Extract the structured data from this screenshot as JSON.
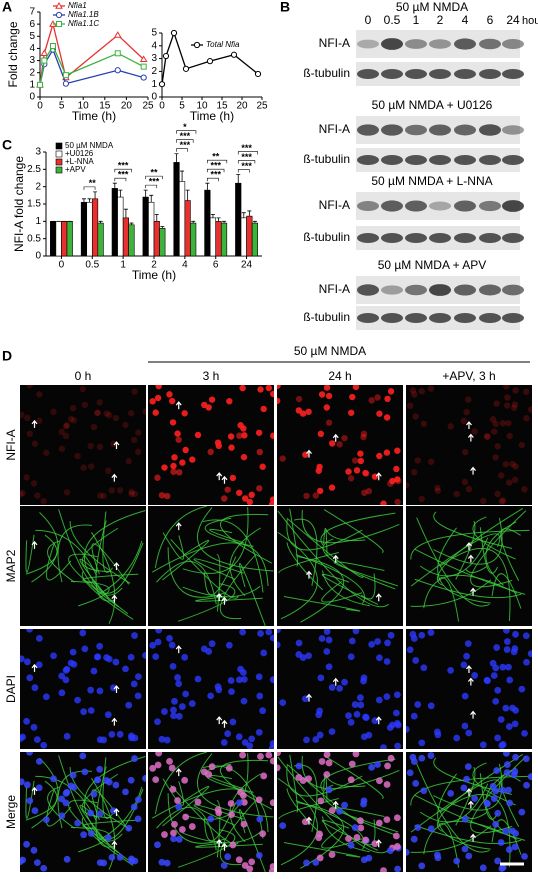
{
  "panel_labels": [
    "A",
    "B",
    "C",
    "D"
  ],
  "chart_data": [
    {
      "type": "line",
      "x_label": "Time (h)",
      "y_label": "Fold change",
      "x": [
        0,
        1,
        3,
        6,
        18,
        24
      ],
      "series": [
        {
          "name": "Nfia1",
          "color": "#e8312f",
          "marker": "triangle",
          "values": [
            1,
            3.6,
            6,
            1.6,
            5.1,
            3.1
          ]
        },
        {
          "name": "Nfia1.1B",
          "color": "#2a3eb1",
          "marker": "circle",
          "values": [
            1,
            2.7,
            3.9,
            1.1,
            2.2,
            1.6
          ]
        },
        {
          "name": "Nfia1.1C",
          "color": "#3cb43c",
          "marker": "square",
          "values": [
            1,
            3,
            4.2,
            1.8,
            3.6,
            2.5
          ]
        }
      ],
      "xlim": [
        0,
        25
      ],
      "xticks": [
        0,
        5,
        10,
        15,
        20,
        25
      ],
      "ylim": [
        0,
        7
      ],
      "yticks": [
        0,
        1,
        2,
        3,
        4,
        5,
        6,
        7
      ]
    },
    {
      "type": "line",
      "x_label": "Time (h)",
      "x": [
        0,
        1,
        3,
        6,
        12,
        18,
        24
      ],
      "series": [
        {
          "name": "Total Nfia",
          "color": "#000000",
          "marker": "circle",
          "values": [
            1,
            3.2,
            5,
            2.2,
            2.8,
            3.3,
            1.8
          ]
        }
      ],
      "xlim": [
        0,
        25
      ],
      "xticks": [
        0,
        5,
        10,
        15,
        20,
        25
      ],
      "ylim": [
        0,
        5
      ],
      "yticks": [
        0,
        1,
        2,
        3,
        4,
        5
      ]
    },
    {
      "type": "bar",
      "x_label": "Time (h)",
      "y_label": "NFI-A fold change",
      "categories": [
        "0",
        "0.5",
        "1",
        "2",
        "4",
        "6",
        "24"
      ],
      "series": [
        {
          "name": "50 µM NMDA",
          "color": "#000000",
          "values": [
            1,
            1.55,
            1.95,
            1.7,
            2.7,
            1.9,
            2.1
          ],
          "errors": [
            0,
            0.1,
            0.15,
            0.2,
            0.25,
            0.2,
            0.25
          ]
        },
        {
          "name": "+U0126",
          "color": "#ffffff",
          "values": [
            1,
            1.55,
            1.7,
            1.55,
            2.15,
            1.1,
            1.1
          ],
          "errors": [
            0,
            0.1,
            0.2,
            0.2,
            0.3,
            0.1,
            0.15
          ]
        },
        {
          "name": "+L-NNA",
          "color": "#e8312f",
          "values": [
            1,
            1.65,
            1.1,
            1.0,
            1.6,
            1.0,
            1.15
          ],
          "errors": [
            0,
            0.2,
            0.25,
            0.2,
            0.3,
            0.1,
            0.15
          ]
        },
        {
          "name": "+APV",
          "color": "#3cb43c",
          "values": [
            1,
            0.95,
            0.9,
            0.8,
            0.95,
            0.95,
            0.95
          ],
          "errors": [
            0,
            0.05,
            0.05,
            0.05,
            0.05,
            0.05,
            0.05
          ]
        }
      ],
      "significance": [
        [],
        [
          "**"
        ],
        [
          "***",
          "***"
        ],
        [
          "***",
          "**"
        ],
        [
          "***",
          "***",
          "*"
        ],
        [
          "***",
          "***",
          "**"
        ],
        [
          "***",
          "***",
          "***"
        ]
      ],
      "ylim": [
        0,
        3
      ],
      "yticks": [
        0,
        0.5,
        1,
        1.5,
        2,
        2.5,
        3
      ]
    }
  ],
  "blots": {
    "treatments": [
      "50 µM NMDA",
      "50 µM NMDA + U0126",
      "50 µM NMDA + L-NNA",
      "50 µM NMDA + APV"
    ],
    "lanes": [
      "0",
      "0.5",
      "1",
      "2",
      "4",
      "6",
      "24"
    ],
    "lane_unit": "hours",
    "rows": [
      "NFI-A",
      "ß-tubulin"
    ]
  },
  "micrographs": {
    "title": "50 µM NMDA",
    "columns": [
      "0 h",
      "3 h",
      "24 h",
      "+APV, 3 h"
    ],
    "rows": [
      "NFI-A",
      "MAP2",
      "DAPI",
      "Merge"
    ]
  }
}
